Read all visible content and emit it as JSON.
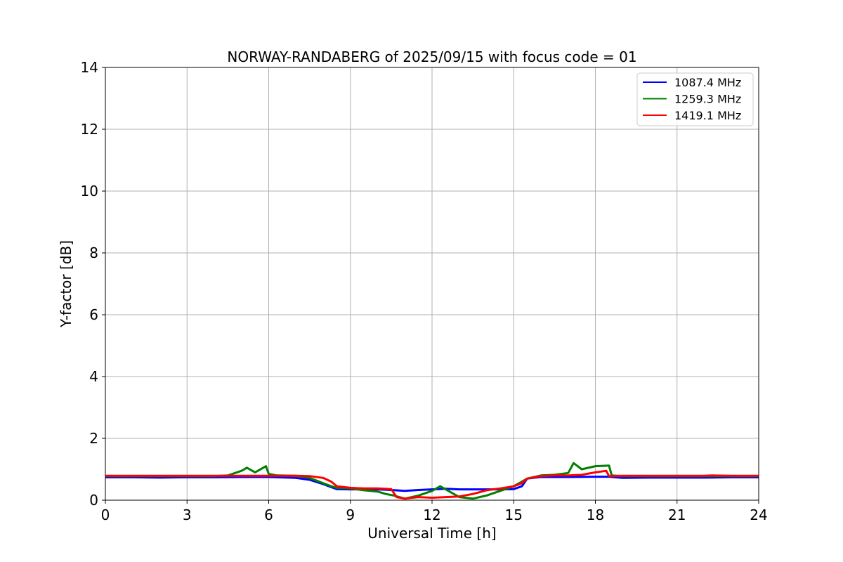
{
  "chart_data": {
    "type": "line",
    "title": "NORWAY-RANDABERG of 2025/09/15 with focus code = 01",
    "xlabel": "Universal Time [h]",
    "ylabel": "Y-factor [dB]",
    "xlim": [
      0,
      24
    ],
    "ylim": [
      0,
      14
    ],
    "xticks": [
      0,
      3,
      6,
      9,
      12,
      15,
      18,
      21,
      24
    ],
    "yticks": [
      0,
      2,
      4,
      6,
      8,
      10,
      12,
      14
    ],
    "grid": true,
    "legend_position": "top-right",
    "series": [
      {
        "name": "1087.4 MHz",
        "color": "#0000ff",
        "x": [
          0,
          1,
          2,
          3,
          4,
          5,
          6,
          7,
          7.5,
          8,
          8.3,
          8.5,
          9,
          9.5,
          10,
          10.5,
          11,
          11.5,
          12,
          12.5,
          13,
          13.5,
          14,
          14.5,
          15,
          15.3,
          15.5,
          16,
          17,
          18,
          18.5,
          19,
          20,
          21,
          22,
          23,
          24
        ],
        "values": [
          0.74,
          0.74,
          0.73,
          0.74,
          0.74,
          0.75,
          0.75,
          0.72,
          0.66,
          0.52,
          0.42,
          0.36,
          0.35,
          0.35,
          0.35,
          0.33,
          0.3,
          0.33,
          0.35,
          0.37,
          0.35,
          0.35,
          0.35,
          0.35,
          0.36,
          0.45,
          0.7,
          0.75,
          0.75,
          0.76,
          0.76,
          0.72,
          0.73,
          0.73,
          0.73,
          0.74,
          0.74
        ]
      },
      {
        "name": "1259.3 MHz",
        "color": "#008000",
        "x": [
          0,
          1,
          2,
          3,
          4,
          4.5,
          5,
          5.2,
          5.5,
          5.9,
          6,
          6.3,
          7,
          7.5,
          8,
          8.3,
          8.5,
          9,
          9.5,
          10,
          10.3,
          10.6,
          11,
          11.5,
          12,
          12.3,
          12.5,
          13,
          13.5,
          14,
          14.5,
          15,
          15.5,
          16,
          16.5,
          17,
          17.2,
          17.5,
          18,
          18.5,
          18.6,
          19,
          20,
          21,
          22,
          23,
          24
        ],
        "values": [
          0.78,
          0.78,
          0.78,
          0.78,
          0.78,
          0.8,
          0.95,
          1.05,
          0.9,
          1.1,
          0.85,
          0.8,
          0.79,
          0.72,
          0.55,
          0.45,
          0.4,
          0.38,
          0.32,
          0.28,
          0.2,
          0.15,
          0.05,
          0.15,
          0.3,
          0.45,
          0.35,
          0.1,
          0.05,
          0.15,
          0.3,
          0.45,
          0.7,
          0.8,
          0.82,
          0.88,
          1.2,
          1.0,
          1.1,
          1.12,
          0.8,
          0.78,
          0.78,
          0.78,
          0.78,
          0.78,
          0.78
        ]
      },
      {
        "name": "1419.1 MHz",
        "color": "#ff0000",
        "x": [
          0,
          1,
          2,
          3,
          4,
          5,
          6,
          7,
          7.5,
          8,
          8.3,
          8.5,
          9,
          9.5,
          10,
          10.5,
          10.7,
          11,
          11.5,
          12,
          12.5,
          13,
          13.5,
          14,
          14.5,
          15,
          15.3,
          15.5,
          16,
          16.5,
          17,
          17.5,
          18,
          18.4,
          18.5,
          19,
          20,
          21,
          22,
          22.3,
          23,
          24
        ],
        "values": [
          0.79,
          0.79,
          0.79,
          0.79,
          0.79,
          0.79,
          0.79,
          0.79,
          0.78,
          0.72,
          0.6,
          0.45,
          0.4,
          0.38,
          0.38,
          0.36,
          0.1,
          0.05,
          0.1,
          0.08,
          0.1,
          0.12,
          0.2,
          0.32,
          0.38,
          0.45,
          0.55,
          0.7,
          0.78,
          0.8,
          0.8,
          0.82,
          0.9,
          0.95,
          0.78,
          0.79,
          0.79,
          0.79,
          0.79,
          0.8,
          0.79,
          0.79
        ]
      }
    ]
  }
}
